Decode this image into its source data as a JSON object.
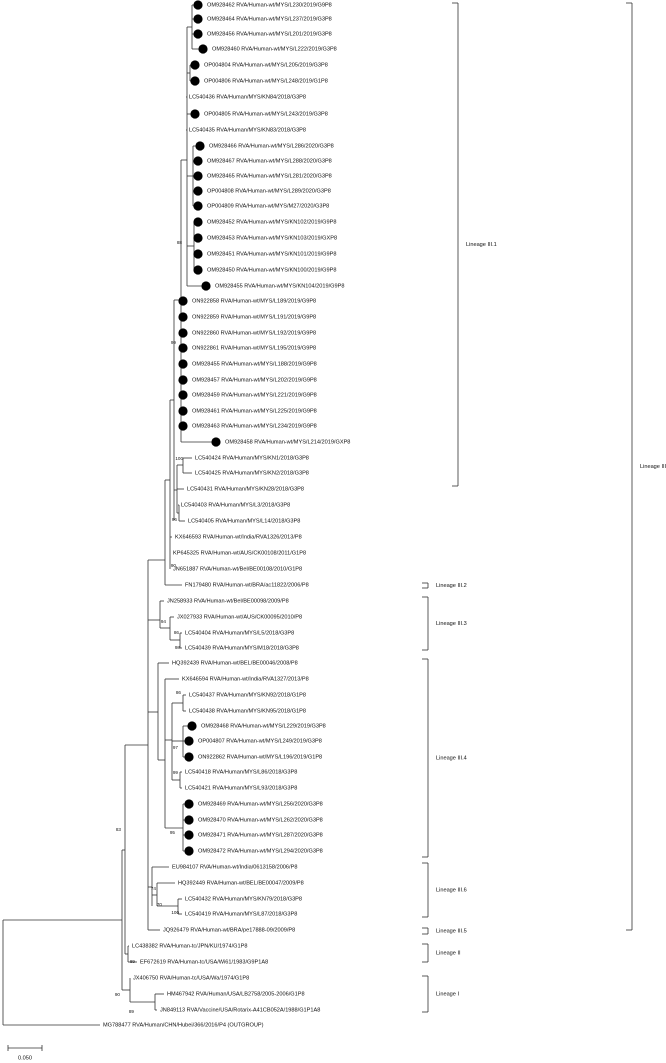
{
  "leaves": [
    "OM928462 RVA/Human-wt/MYS/L230/2019/G9P8",
    "OM928464 RVA/Human-wt/MYS/L237/2019/G3P8",
    "OM928456 RVA/Human-wt/MYS/L201/2019/G3P8",
    "OM928460 RVA/Human-wt/MYS/L222/2019/G3P8",
    "OP004804 RVA/Human-wt/MYS/L205/2019/G3P8",
    "OP004806 RVA/Human-wt/MYS/L248/2019/G1P8",
    "LC540436 RVA/Human/MYS/KN84/2018/G3P8",
    "OP004805 RVA/Human-wt/MYS/L243/2019/G3P8",
    "LC540435 RVA/Human/MYS/KN83/2018/G3P8",
    "OM928466 RVA/Human-wt/MYS/L286/2020/G3P8",
    "OM928467 RVA/Human-wt/MYS/L288/2020/G3P8",
    "OM928465 RVA/Human-wt/MYS/L281/2020/G3P8",
    "OP004808 RVA/Human-wt/MYS/L289/2020/G3P8",
    "OP004809 RVA/Human-wt/MYS/M27/2020/G3P8",
    "OM928452 RVA/Human-wt/MYS/KN102/2019/G9P8",
    "OM928453 RVA/Human-wt/MYS/KN103/2019/GXP8",
    "OM928451 RVA/Human-wt/MYS/KN101/2019/G9P8",
    "OM928450 RVA/Human-wt/MYS/KN100/2019/G9P8",
    "OM928455 RVA/Human-wt/MYS/KN104/2019/G9P8",
    "ON922858 RVA/Human-wt/MYS/L189/2019/G9P8",
    "ON922859 RVA/Human-wt/MYS/L191/2019/G9P8",
    "ON922860 RVA/Human-wt/MYS/L192/2019/G9P8",
    "ON922861 RVA/Human-wt/MYS/L195/2019/G9P8",
    "OM928455 RVA/Human-wt/MYS/L188/2019/G9P8",
    "OM928457 RVA/Human-wt/MYS/L202/2019/G9P8",
    "OM928459 RVA/Human-wt/MYS/L221/2019/G9P8",
    "OM928461 RVA/Human-wt/MYS/L225/2019/G9P8",
    "OM928463 RVA/Human-wt/MYS/L234/2019/G9P8",
    "OM928458 RVA/Human-wt/MYS/L214/2019/GXP8",
    "LC540424 RVA/Human/MYS/KN1/2018/G3P8",
    "LC540425 RVA/Human/MYS/KN2/2018/G3P8",
    "LC540431 RVA/Human/MYS/KN28/2018/G3P8",
    "LC540403 RVA/Human/MYS/L3/2018/G3P8",
    "LC540405 RVA/Human/MYS/L14/2018/G3P8",
    "KX646593 RVA/Human-wt/India/RVA1326/2013/P8",
    "KP645325 RVA/Human-wt/AUS/CK00108/2011/G1P8",
    "JN651887 RVA/Human-wt/Bel/BE00108/2010/G1P8",
    "FN179480 RVA/Human-wt/BRA/ac11822/2006/P8",
    "JN258933 RVA/Human-wt/Bel/BE00098/2009/P8",
    "JX027933 RVA/Human-wt/AUS/CK00095/2010/P8",
    "LC540404 RVA/Human/MYS/L5/2018/G3P8",
    "LC540439 RVA/Human/MYS/M18/2018/G3P8",
    "HQ392439 RVA/Human-wt/BEL/BE00046/2008/P8",
    "KX646594 RVA/Human-wt/India/RVA1327/2013/P8",
    "LC540437 RVA/Human/MYS/KN92/2018/G1P8",
    "LC540438 RVA/Human/MYS/KN95/2018/G1P8",
    "OM928468 RVA/Human-wt/MYS/L229/2019/G3P8",
    "OP004807 RVA/Human-wt/MYS/L249/2019/G3P8",
    "ON922862 RVA/Human-wt/MYS/L196/2019/G1P8",
    "LC540418 RVA/Human/MYS/L86/2018/G3P8",
    "LC540421 RVA/Human/MYS/L93/2018/G3P8",
    "OM928469 RVA/Human-wt/MYS/L256/2020/G3P8",
    "OM928470 RVA/Human-wt/MYS/L262/2020/G3P8",
    "OM928471 RVA/Human-wt/MYS/L287/2020/G3P8",
    "OM928472 RVA/Human-wt/MYS/L294/2020/G3P8",
    "EU984107 RVA/Human-wt/India/0613158/2006/P8",
    "HQ392449 RVA/Human-wt/BEL/BE00047/2009/P8",
    "LC540432 RVA/Human/MYS/KN79/2018/G3P8",
    "LC540419 RVA/Human/MYS/L87/2018/G3P8",
    "JQ926479 RVA/Human-wt/BRA/pe17888-09/2009/P8",
    "LC438382 RVA/Human-tc/JPN/KU/1974/G1P8",
    "EF672619 RVA/Human-tc/USA/Wi61/1983/G9P1A8",
    "JX406750 RVA/Human-tc/USA/Wa/1974/G1P8",
    "HM467942 RVA/Human/USA/LB2758/2005-2006/G1P8",
    "JN849113 RVA/Vaccine/USA/Rotarix-A41CB052A/1988/G1P1A8",
    "MG788477 RVA/Human/CHN/Hubei/366/2016/P4 (OUTGROUP)"
  ],
  "bootstrap": [
    88,
    99,
    100,
    96,
    90,
    94,
    86,
    98,
    86,
    97,
    99,
    95,
    83,
    74,
    70,
    100,
    89,
    90,
    89
  ],
  "lineages": [
    "Lineage III.1",
    "Lineage III",
    "Lineage III.2",
    "Lineage III.3",
    "Lineage III.4",
    "Lineage III.6",
    "Lineage III.5",
    "Lineage II",
    "Lineage I"
  ],
  "scale_bar": "0.050"
}
